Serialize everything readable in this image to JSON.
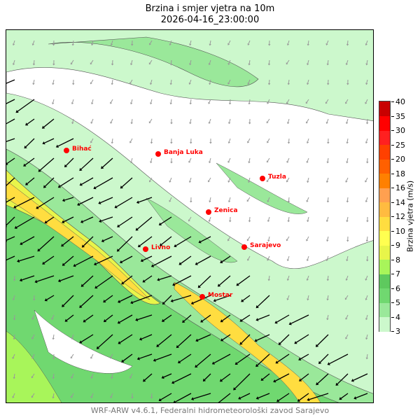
{
  "title": {
    "line1": "Brzina i smjer vjetra na 10m",
    "line2": "2026-04-16_23:00:00"
  },
  "colorbar": {
    "label": "Brzina vjetra (m/s)",
    "ticks": [
      "3",
      "4",
      "5",
      "6",
      "7",
      "8",
      "9",
      "10",
      "12",
      "14",
      "16",
      "18",
      "20",
      "25",
      "30",
      "35",
      "40"
    ],
    "colors": [
      "#ccf8cc",
      "#9ae89a",
      "#70d870",
      "#5ec95e",
      "#a8f55a",
      "#e8f54a",
      "#ffff50",
      "#ffdd40",
      "#ffbb40",
      "#ffa050",
      "#ff8000",
      "#ff6000",
      "#ff4000",
      "#ff2020",
      "#ff0000",
      "#c80000"
    ]
  },
  "cities": [
    "Bihać",
    "Banja Luka",
    "Tuzla",
    "Zenica",
    "Livno",
    "Sarajevo",
    "Mostar"
  ],
  "footer": "WRF-ARW v4.6.1, Federalni hidrometeorološki zavod Sarajevo"
}
